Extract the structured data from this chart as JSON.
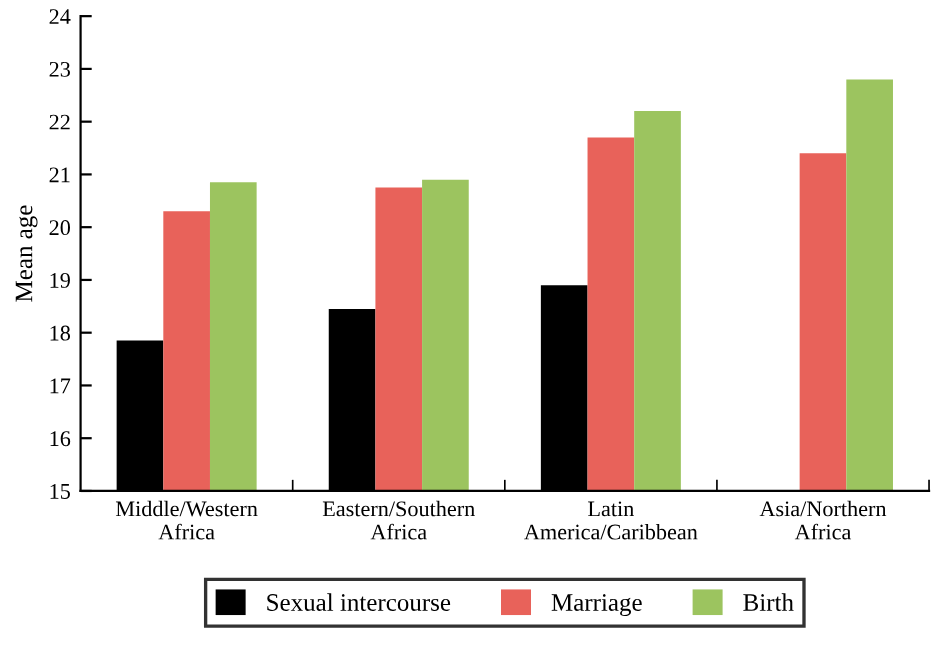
{
  "chart_data": {
    "type": "bar",
    "ylabel": "Mean age",
    "categories": [
      "Middle/Western\nAfrica",
      "Eastern/Southern\nAfrica",
      "Latin\nAmerica/Caribbean",
      "Asia/Northern\nAfrica"
    ],
    "series": [
      {
        "name": "Sexual intercourse",
        "color": "#000000",
        "values": [
          17.85,
          18.45,
          18.9,
          null
        ]
      },
      {
        "name": "Marriage",
        "color": "#e8625a",
        "values": [
          20.3,
          20.75,
          21.7,
          21.4
        ]
      },
      {
        "name": "Birth",
        "color": "#9cc45f",
        "values": [
          20.85,
          20.9,
          22.2,
          22.8
        ]
      }
    ],
    "ylim": [
      15,
      24
    ],
    "yticks": [
      15,
      16,
      17,
      18,
      19,
      20,
      21,
      22,
      23,
      24
    ],
    "grid": false,
    "legend": "bottom"
  }
}
